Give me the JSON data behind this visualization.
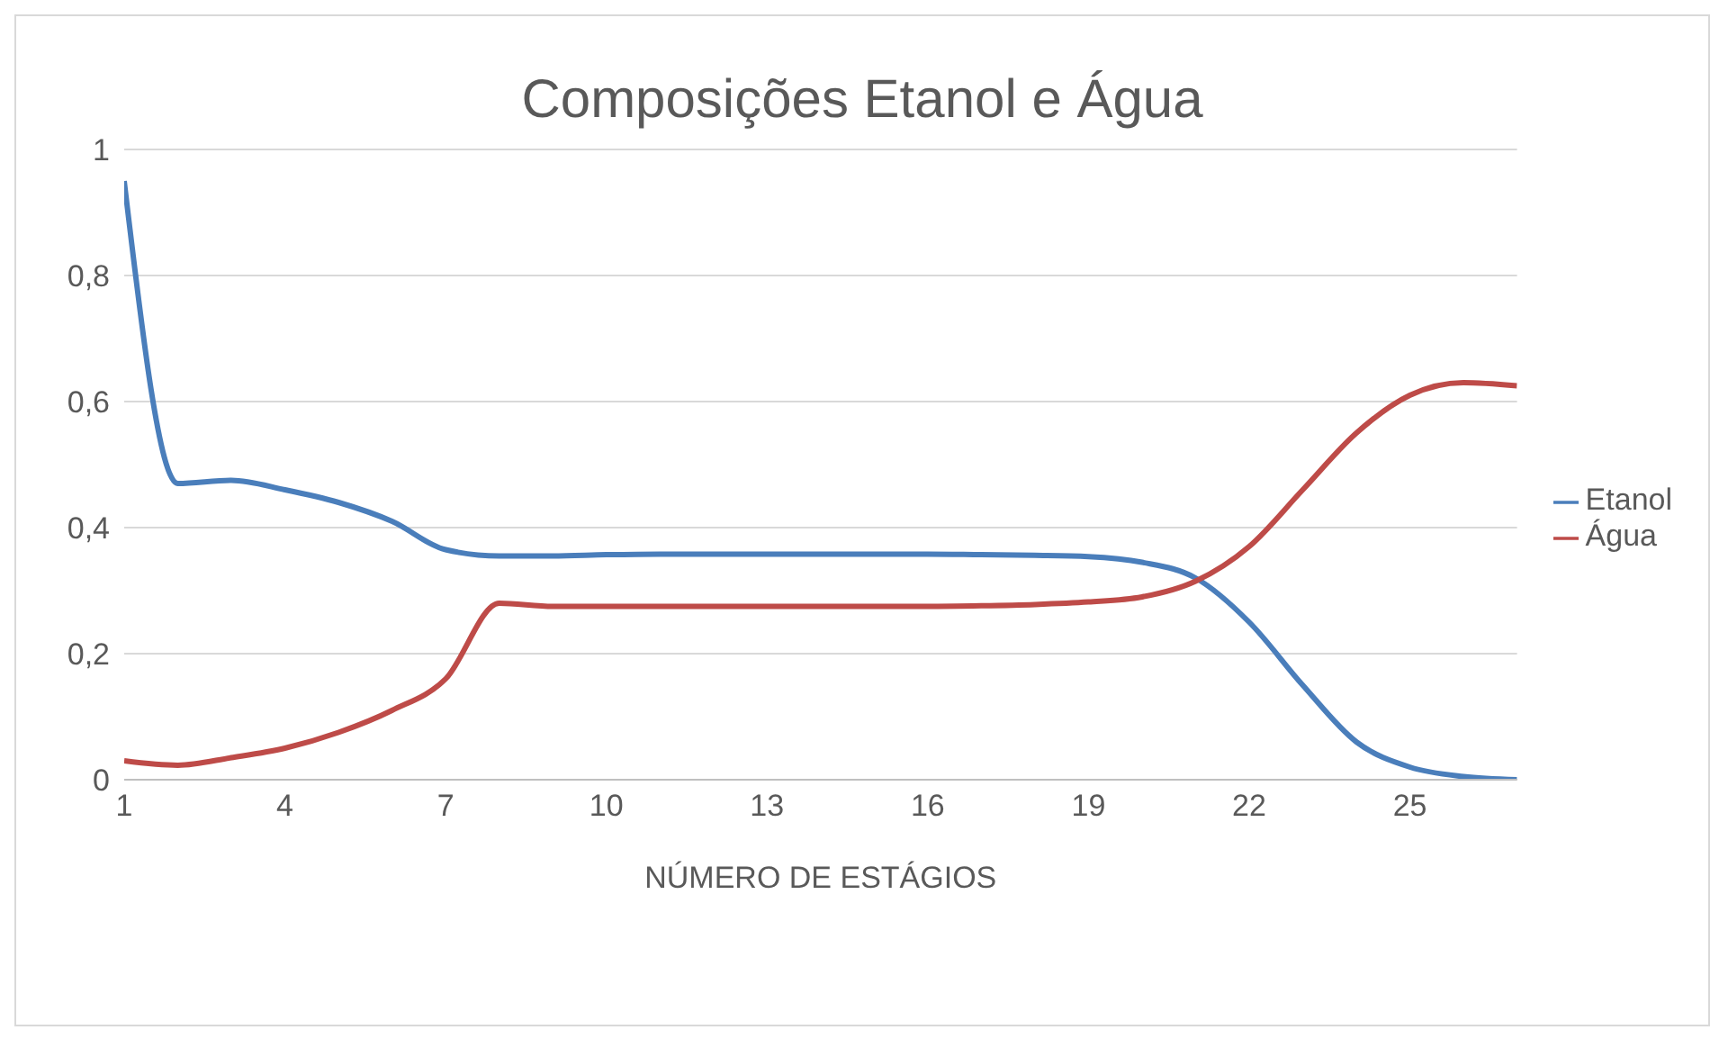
{
  "chart_data": {
    "type": "line",
    "title": "Composições Etanol e Água",
    "xlabel": "NÚMERO  DE ESTÁGIOS",
    "x": [
      1,
      2,
      3,
      4,
      5,
      6,
      7,
      8,
      9,
      10,
      11,
      12,
      13,
      14,
      15,
      16,
      17,
      18,
      19,
      20,
      21,
      22,
      23,
      24,
      25,
      26,
      27
    ],
    "xlim": [
      1,
      27
    ],
    "xticks": [
      1,
      4,
      7,
      10,
      13,
      16,
      19,
      22,
      25
    ],
    "ylim": [
      0,
      1
    ],
    "yticks": [
      0,
      {
        "value": 0.2,
        "label": "0,2"
      },
      {
        "value": 0.4,
        "label": "0,4"
      },
      {
        "value": 0.6,
        "label": "0,6"
      },
      {
        "value": 0.8,
        "label": "0,8"
      },
      1
    ],
    "grid": "y",
    "legend": "right",
    "marker": "none",
    "line_style": "solid",
    "series": [
      {
        "name": "Etanol",
        "color": "#4a7ebb",
        "values": [
          0.95,
          0.47,
          0.475,
          0.46,
          0.44,
          0.41,
          0.365,
          0.355,
          0.355,
          0.357,
          0.358,
          0.358,
          0.358,
          0.358,
          0.358,
          0.358,
          0.357,
          0.356,
          0.354,
          0.345,
          0.32,
          0.25,
          0.15,
          0.06,
          0.02,
          0.005,
          0.0
        ]
      },
      {
        "name": "Água",
        "color": "#be4b48",
        "values": [
          0.03,
          0.023,
          0.035,
          0.05,
          0.075,
          0.11,
          0.16,
          0.28,
          0.275,
          0.275,
          0.275,
          0.275,
          0.275,
          0.275,
          0.275,
          0.275,
          0.276,
          0.278,
          0.282,
          0.29,
          0.315,
          0.37,
          0.46,
          0.55,
          0.61,
          0.63,
          0.625
        ]
      }
    ]
  }
}
